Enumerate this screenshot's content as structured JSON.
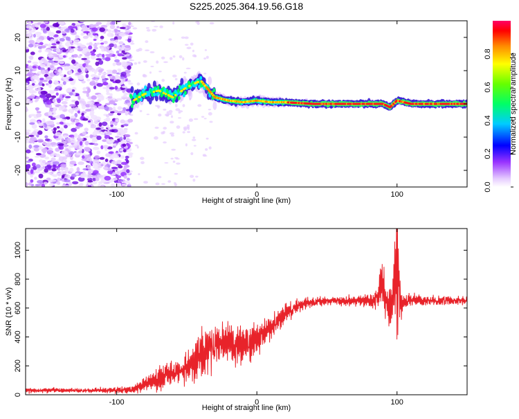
{
  "chart_data": [
    {
      "type": "heatmap",
      "title": "S225.2025.364.19.56.G18",
      "xlabel": "Height of straight line (km)",
      "ylabel": "Frequency (Hz)",
      "xlim": [
        -165,
        150
      ],
      "ylim": [
        -25,
        25
      ],
      "xticks": [
        -100,
        0,
        100
      ],
      "yticks": [
        -20,
        -10,
        0,
        10,
        20
      ],
      "colorbar": {
        "label": "Normalized spectral amplitude",
        "range": [
          0,
          1
        ],
        "ticks": [
          0.0,
          0.2,
          0.4,
          0.6,
          0.8
        ],
        "colors": [
          "#ffffff",
          "#cc99ff",
          "#6600cc",
          "#0000ff",
          "#00ffff",
          "#00ff00",
          "#ffff00",
          "#ff9900",
          "#ff0000",
          "#ff0066"
        ]
      },
      "ridge": {
        "x": [
          -90,
          -80,
          -70,
          -60,
          -50,
          -40,
          -30,
          -20,
          -10,
          0,
          10,
          20,
          40,
          60,
          80,
          90,
          95,
          100,
          110,
          130,
          150
        ],
        "frequency": [
          0.5,
          3,
          4,
          2,
          5,
          7,
          2,
          1,
          0.5,
          1,
          0.5,
          0.5,
          0,
          0,
          0,
          0,
          -1,
          1,
          0,
          0,
          0
        ]
      }
    },
    {
      "type": "line",
      "title": "",
      "xlabel": "Height of straight line (km)",
      "ylabel": "SNR (10 * v/v)",
      "xlim": [
        -165,
        150
      ],
      "ylim": [
        0,
        1150
      ],
      "xticks": [
        -100,
        0,
        100
      ],
      "yticks": [
        0,
        200,
        400,
        600,
        800,
        1000
      ],
      "line_color": "#e8232a",
      "series": [
        {
          "name": "SNR",
          "x": [
            -165,
            -140,
            -120,
            -100,
            -90,
            -80,
            -70,
            -60,
            -50,
            -40,
            -35,
            -30,
            -20,
            -10,
            0,
            10,
            20,
            30,
            40,
            50,
            60,
            70,
            80,
            85,
            88,
            90,
            92,
            95,
            98,
            100,
            102,
            105,
            110,
            120,
            130,
            140,
            150
          ],
          "values": [
            30,
            30,
            30,
            30,
            35,
            70,
            110,
            150,
            180,
            260,
            330,
            340,
            360,
            330,
            380,
            470,
            560,
            620,
            640,
            650,
            650,
            650,
            650,
            660,
            740,
            780,
            640,
            600,
            740,
            900,
            640,
            640,
            650,
            650,
            650,
            650,
            650
          ],
          "spread": [
            15,
            15,
            15,
            20,
            20,
            50,
            70,
            80,
            100,
            150,
            160,
            150,
            140,
            120,
            100,
            80,
            60,
            40,
            30,
            30,
            30,
            30,
            40,
            60,
            120,
            160,
            120,
            120,
            200,
            450,
            160,
            50,
            40,
            30,
            30,
            30,
            30
          ]
        }
      ]
    }
  ]
}
